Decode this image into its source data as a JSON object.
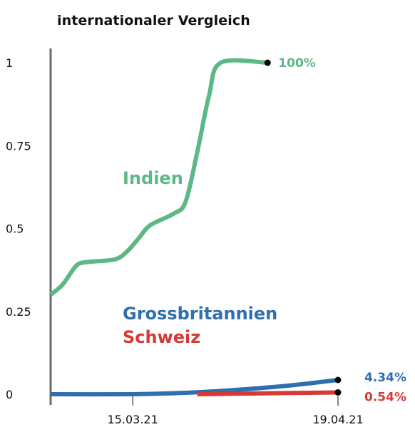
{
  "chart_data": {
    "type": "line",
    "title": "internationaler Vergleich",
    "xlabel": "",
    "ylabel": "",
    "ylim": [
      0,
      1
    ],
    "y_ticks": [
      {
        "value": 0,
        "label": "0"
      },
      {
        "value": 0.25,
        "label": "0.25"
      },
      {
        "value": 0.5,
        "label": "0.5"
      },
      {
        "value": 0.75,
        "label": "0.75"
      },
      {
        "value": 1,
        "label": "1"
      }
    ],
    "x_ticks": [
      {
        "value": "2021-03-15",
        "label": "15.03.21"
      },
      {
        "value": "2021-04-19",
        "label": "19.04.21"
      }
    ],
    "xlim": [
      "2021-03-01",
      "2021-04-19"
    ],
    "series": [
      {
        "name": "Indien",
        "color": "#5cb885",
        "end_label": "100%",
        "points": [
          [
            "2021-03-01",
            0.3
          ],
          [
            "2021-03-03",
            0.33
          ],
          [
            "2021-03-05",
            0.38
          ],
          [
            "2021-03-06",
            0.395
          ],
          [
            "2021-03-08",
            0.4
          ],
          [
            "2021-03-12",
            0.407
          ],
          [
            "2021-03-14",
            0.43
          ],
          [
            "2021-03-16",
            0.47
          ],
          [
            "2021-03-18",
            0.51
          ],
          [
            "2021-03-22",
            0.545
          ],
          [
            "2021-03-24",
            0.58
          ],
          [
            "2021-03-26",
            0.73
          ],
          [
            "2021-03-28",
            0.9
          ],
          [
            "2021-03-30",
            1.0
          ],
          [
            "2021-04-07",
            1.0
          ]
        ]
      },
      {
        "name": "Grossbritannien",
        "color": "#2f6fae",
        "end_label": "4.34%",
        "points": [
          [
            "2021-03-01",
            0.0
          ],
          [
            "2021-03-15",
            0.0
          ],
          [
            "2021-03-22",
            0.003
          ],
          [
            "2021-03-30",
            0.01
          ],
          [
            "2021-04-10",
            0.025
          ],
          [
            "2021-04-19",
            0.043
          ]
        ]
      },
      {
        "name": "Schweiz",
        "color": "#d63a35",
        "end_label": "0.54%",
        "points": [
          [
            "2021-03-26",
            0.0
          ],
          [
            "2021-04-19",
            0.0054
          ]
        ]
      }
    ]
  }
}
